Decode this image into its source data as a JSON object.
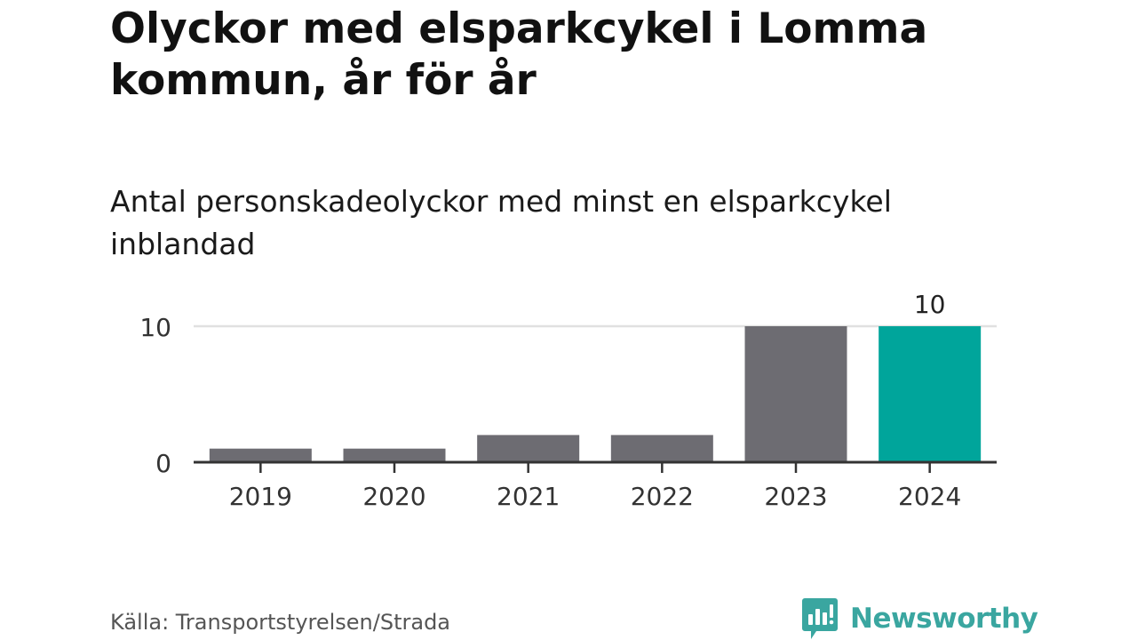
{
  "title": "Olyckor med elsparkcykel i Lomma kommun, år för år",
  "subtitle": "Antal personskadeolyckor med minst en elsparkcykel inblandad",
  "source": "Källa: Transportstyrelsen/Strada",
  "brand": {
    "name": "Newsworthy",
    "color": "#3aa6a0",
    "icon": "newsworthy-logo-icon"
  },
  "colors": {
    "bar": "#6d6c72",
    "highlight": "#00a59b",
    "axis": "#333333",
    "grid": "#e0e0e0"
  },
  "chart_data": {
    "type": "bar",
    "categories": [
      "2019",
      "2020",
      "2021",
      "2022",
      "2023",
      "2024"
    ],
    "values": [
      1,
      1,
      2,
      2,
      10,
      10
    ],
    "highlight_index": 5,
    "data_labels": [
      {
        "index": 5,
        "text": "10"
      }
    ],
    "yticks": [
      0,
      10
    ],
    "ylim": [
      0,
      10
    ],
    "xlabel": "",
    "ylabel": "",
    "grid": true
  }
}
